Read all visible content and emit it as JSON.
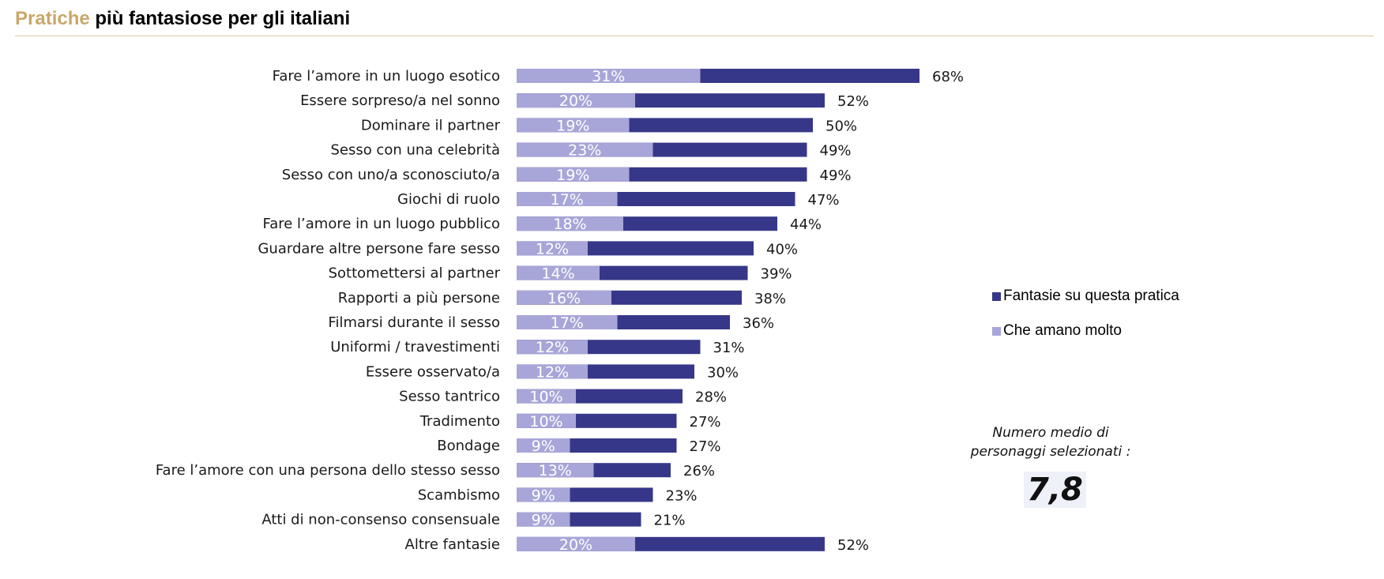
{
  "header": {
    "title_accent": "Pratiche",
    "title_rest": " più fantasiose per gli italiani"
  },
  "colors": {
    "accent": "#c9a86a",
    "fantasize": "#373789",
    "love": "#a8a6d8"
  },
  "legend": {
    "fantasize_label": "Fantasie su questa pratica",
    "love_label": "Che amano molto"
  },
  "average": {
    "caption_line1": "Numero medio di",
    "caption_line2": "personaggi selezionati :",
    "value": "7,8"
  },
  "chart_data": {
    "type": "bar",
    "orientation": "horizontal",
    "categories": [
      "Fare l’amore in un luogo esotico",
      "Essere sorpreso/a nel sonno",
      "Dominare il partner",
      "Sesso con una celebrità",
      "Sesso con uno/a sconosciuto/a",
      "Giochi di ruolo",
      "Fare l’amore in un luogo pubblico",
      "Guardare altre persone fare sesso",
      "Sottomettersi al partner",
      "Rapporti a più persone",
      "Filmarsi durante il sesso",
      "Uniformi / travestimenti",
      "Essere osservato/a",
      "Sesso tantrico",
      "Tradimento",
      "Bondage",
      "Fare l’amore con una persona dello stesso sesso",
      "Scambismo",
      "Atti di non-consenso consensuale",
      "Altre fantasie"
    ],
    "series": [
      {
        "name": "Fantasie su questa pratica",
        "values": [
          68,
          52,
          50,
          49,
          49,
          47,
          44,
          40,
          39,
          38,
          36,
          31,
          30,
          28,
          27,
          27,
          26,
          23,
          21,
          52
        ],
        "labels": [
          "68%",
          "52%",
          "50%",
          "49%",
          "49%",
          "47%",
          "44%",
          "40%",
          "39%",
          "38%",
          "36%",
          "31%",
          "30%",
          "28%",
          "27%",
          "27%",
          "26%",
          "23%",
          "21%",
          "52%"
        ]
      },
      {
        "name": "Che amano molto",
        "values": [
          31,
          20,
          19,
          23,
          19,
          17,
          18,
          12,
          14,
          16,
          17,
          12,
          12,
          10,
          10,
          9,
          13,
          9,
          9,
          20
        ],
        "labels": [
          "31%",
          "20%",
          "19%",
          "23%",
          "19%",
          "17%",
          "18%",
          "12%",
          "14%",
          "16%",
          "17%",
          "12%",
          "12%",
          "10%",
          "10%",
          "9%",
          "13%",
          "9%",
          "9%",
          "20%"
        ]
      }
    ],
    "xlim": [
      0,
      68
    ],
    "grid": false,
    "legend_position": "right"
  }
}
